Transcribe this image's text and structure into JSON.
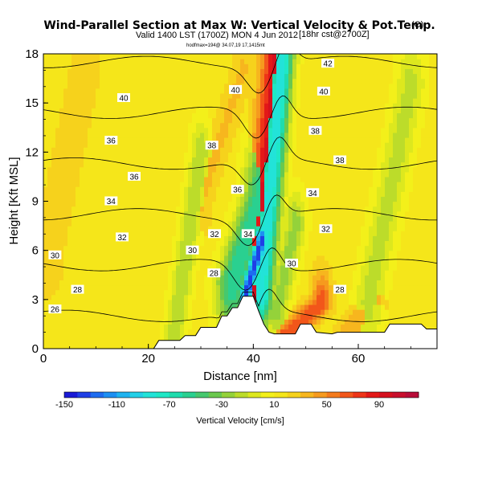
{
  "header": {
    "title": "Wind-Parallel Section at Max W: Vertical Velocity & Pot.Temp.",
    "title_mark": "(C)",
    "subtitle": "Valid 1400 LST (1700Z) MON 4 Jun 2012",
    "subtitle_note": "[18hr cst@2700Z]",
    "small_line": "hodfmax=194@ 34.07,19 17,1415mt"
  },
  "chart_data": {
    "type": "heatmap",
    "xlabel": "Distance [nm]",
    "ylabel": "Height [Kft MSL]",
    "xlim": [
      0,
      75
    ],
    "ylim": [
      0,
      18
    ],
    "xticks": [
      0,
      20,
      40,
      60
    ],
    "yticks": [
      0,
      3,
      6,
      9,
      12,
      15,
      18
    ],
    "background_field_value": 15,
    "w_features": [
      {
        "x0": 40.5,
        "y0": 3.2,
        "x1": 44.5,
        "y1": 17.8,
        "value": 95,
        "width": 2.0
      },
      {
        "x0": 41.5,
        "y0": 3.5,
        "x1": 45.5,
        "y1": 17.8,
        "value": -90,
        "width": 1.6
      },
      {
        "x0": 36,
        "y0": 4.0,
        "x1": 41.5,
        "y1": 9.5,
        "value": -60,
        "width": 2.2
      },
      {
        "x0": 38.5,
        "y0": 3.3,
        "x1": 41.5,
        "y1": 6.5,
        "value": -140,
        "width": 0.9
      },
      {
        "x0": 44.5,
        "y0": 2.5,
        "x1": 48.0,
        "y1": 7.5,
        "value": -25,
        "width": 1.5
      },
      {
        "x0": 46,
        "y0": 0.8,
        "x1": 53,
        "y1": 2.8,
        "value": 70,
        "width": 1.3
      },
      {
        "x0": 58,
        "y0": 1.0,
        "x1": 63,
        "y1": 3.0,
        "value": 40,
        "width": 1.6
      },
      {
        "x0": 25,
        "y0": 1.0,
        "x1": 30,
        "y1": 12.0,
        "value": -20,
        "width": 1.4
      },
      {
        "x0": 62,
        "y0": 3.0,
        "x1": 70,
        "y1": 16.0,
        "value": -15,
        "width": 2.0
      },
      {
        "x0": 1,
        "y0": 6.0,
        "x1": 8,
        "y1": 17.0,
        "value": 30,
        "width": 2.0
      },
      {
        "x0": 30,
        "y0": 9.0,
        "x1": 38,
        "y1": 17.0,
        "value": 32,
        "width": 1.5
      }
    ],
    "terrain": [
      [
        0,
        0.0
      ],
      [
        21,
        0.0
      ],
      [
        22,
        0.5
      ],
      [
        26,
        0.5
      ],
      [
        27,
        0.8
      ],
      [
        29,
        0.8
      ],
      [
        30,
        1.3
      ],
      [
        33,
        1.3
      ],
      [
        34,
        2.0
      ],
      [
        35,
        2.0
      ],
      [
        36,
        2.5
      ],
      [
        37,
        2.5
      ],
      [
        38,
        3.2
      ],
      [
        40,
        3.2
      ],
      [
        41,
        2.3
      ],
      [
        42,
        1.5
      ],
      [
        43,
        1.0
      ],
      [
        44,
        0.9
      ],
      [
        48,
        0.9
      ],
      [
        49,
        1.5
      ],
      [
        51,
        1.5
      ],
      [
        52,
        1.0
      ],
      [
        55,
        0.9
      ],
      [
        56,
        1.0
      ],
      [
        65,
        1.0
      ],
      [
        66,
        1.5
      ],
      [
        72,
        1.5
      ],
      [
        73,
        1.2
      ],
      [
        75,
        1.2
      ]
    ],
    "isentrope_levels": [
      26,
      28,
      30,
      32,
      34,
      36,
      38,
      40,
      42
    ],
    "isentrope_labels": [
      {
        "text": "26",
        "x": 2.2,
        "y": 2.4
      },
      {
        "text": "28",
        "x": 6.5,
        "y": 3.6
      },
      {
        "text": "28",
        "x": 32.5,
        "y": 4.6
      },
      {
        "text": "28",
        "x": 56.5,
        "y": 3.6
      },
      {
        "text": "30",
        "x": 2.2,
        "y": 5.7
      },
      {
        "text": "30",
        "x": 28.4,
        "y": 6.0
      },
      {
        "text": "30",
        "x": 47.3,
        "y": 5.2
      },
      {
        "text": "32",
        "x": 15.0,
        "y": 6.8
      },
      {
        "text": "32",
        "x": 32.6,
        "y": 7.0
      },
      {
        "text": "32",
        "x": 53.8,
        "y": 7.3
      },
      {
        "text": "34",
        "x": 12.9,
        "y": 9.0
      },
      {
        "text": "34",
        "x": 39.0,
        "y": 7.0
      },
      {
        "text": "34",
        "x": 51.3,
        "y": 9.5
      },
      {
        "text": "36",
        "x": 17.3,
        "y": 10.5
      },
      {
        "text": "36",
        "x": 37.0,
        "y": 9.7
      },
      {
        "text": "36",
        "x": 12.9,
        "y": 12.7
      },
      {
        "text": "38",
        "x": 32.1,
        "y": 12.4
      },
      {
        "text": "38",
        "x": 56.5,
        "y": 11.5
      },
      {
        "text": "38",
        "x": 51.8,
        "y": 13.3
      },
      {
        "text": "40",
        "x": 15.3,
        "y": 15.3
      },
      {
        "text": "40",
        "x": 36.6,
        "y": 15.8
      },
      {
        "text": "40",
        "x": 53.4,
        "y": 15.7
      },
      {
        "text": "42",
        "x": 54.2,
        "y": 17.4
      }
    ],
    "colorbar": {
      "label": "Vertical Velocity [cm/s]",
      "tick_labels": [
        "-150",
        "-110",
        "-70",
        "-30",
        "10",
        "50",
        "90"
      ],
      "levels": [
        -150,
        -140,
        -130,
        -120,
        -110,
        -100,
        -90,
        -80,
        -70,
        -60,
        -50,
        -40,
        -30,
        -20,
        -10,
        0,
        10,
        20,
        30,
        40,
        50,
        60,
        70,
        80,
        90,
        100,
        110,
        120
      ],
      "colors": [
        "#1a1ad6",
        "#1f3fe6",
        "#1e6cf0",
        "#1d8ff2",
        "#1fb3f0",
        "#23d0e8",
        "#22e3d8",
        "#1fe8c6",
        "#1fdcad",
        "#2ad090",
        "#46c86e",
        "#6ac84e",
        "#94d23a",
        "#bcdc2a",
        "#dde81e",
        "#f3f01a",
        "#f5e61a",
        "#f6d21c",
        "#f7b61e",
        "#f69a1e",
        "#f47a1c",
        "#f2561a",
        "#ee3418",
        "#e31818",
        "#d5101e",
        "#c80e2c",
        "#b80c38"
      ]
    }
  }
}
